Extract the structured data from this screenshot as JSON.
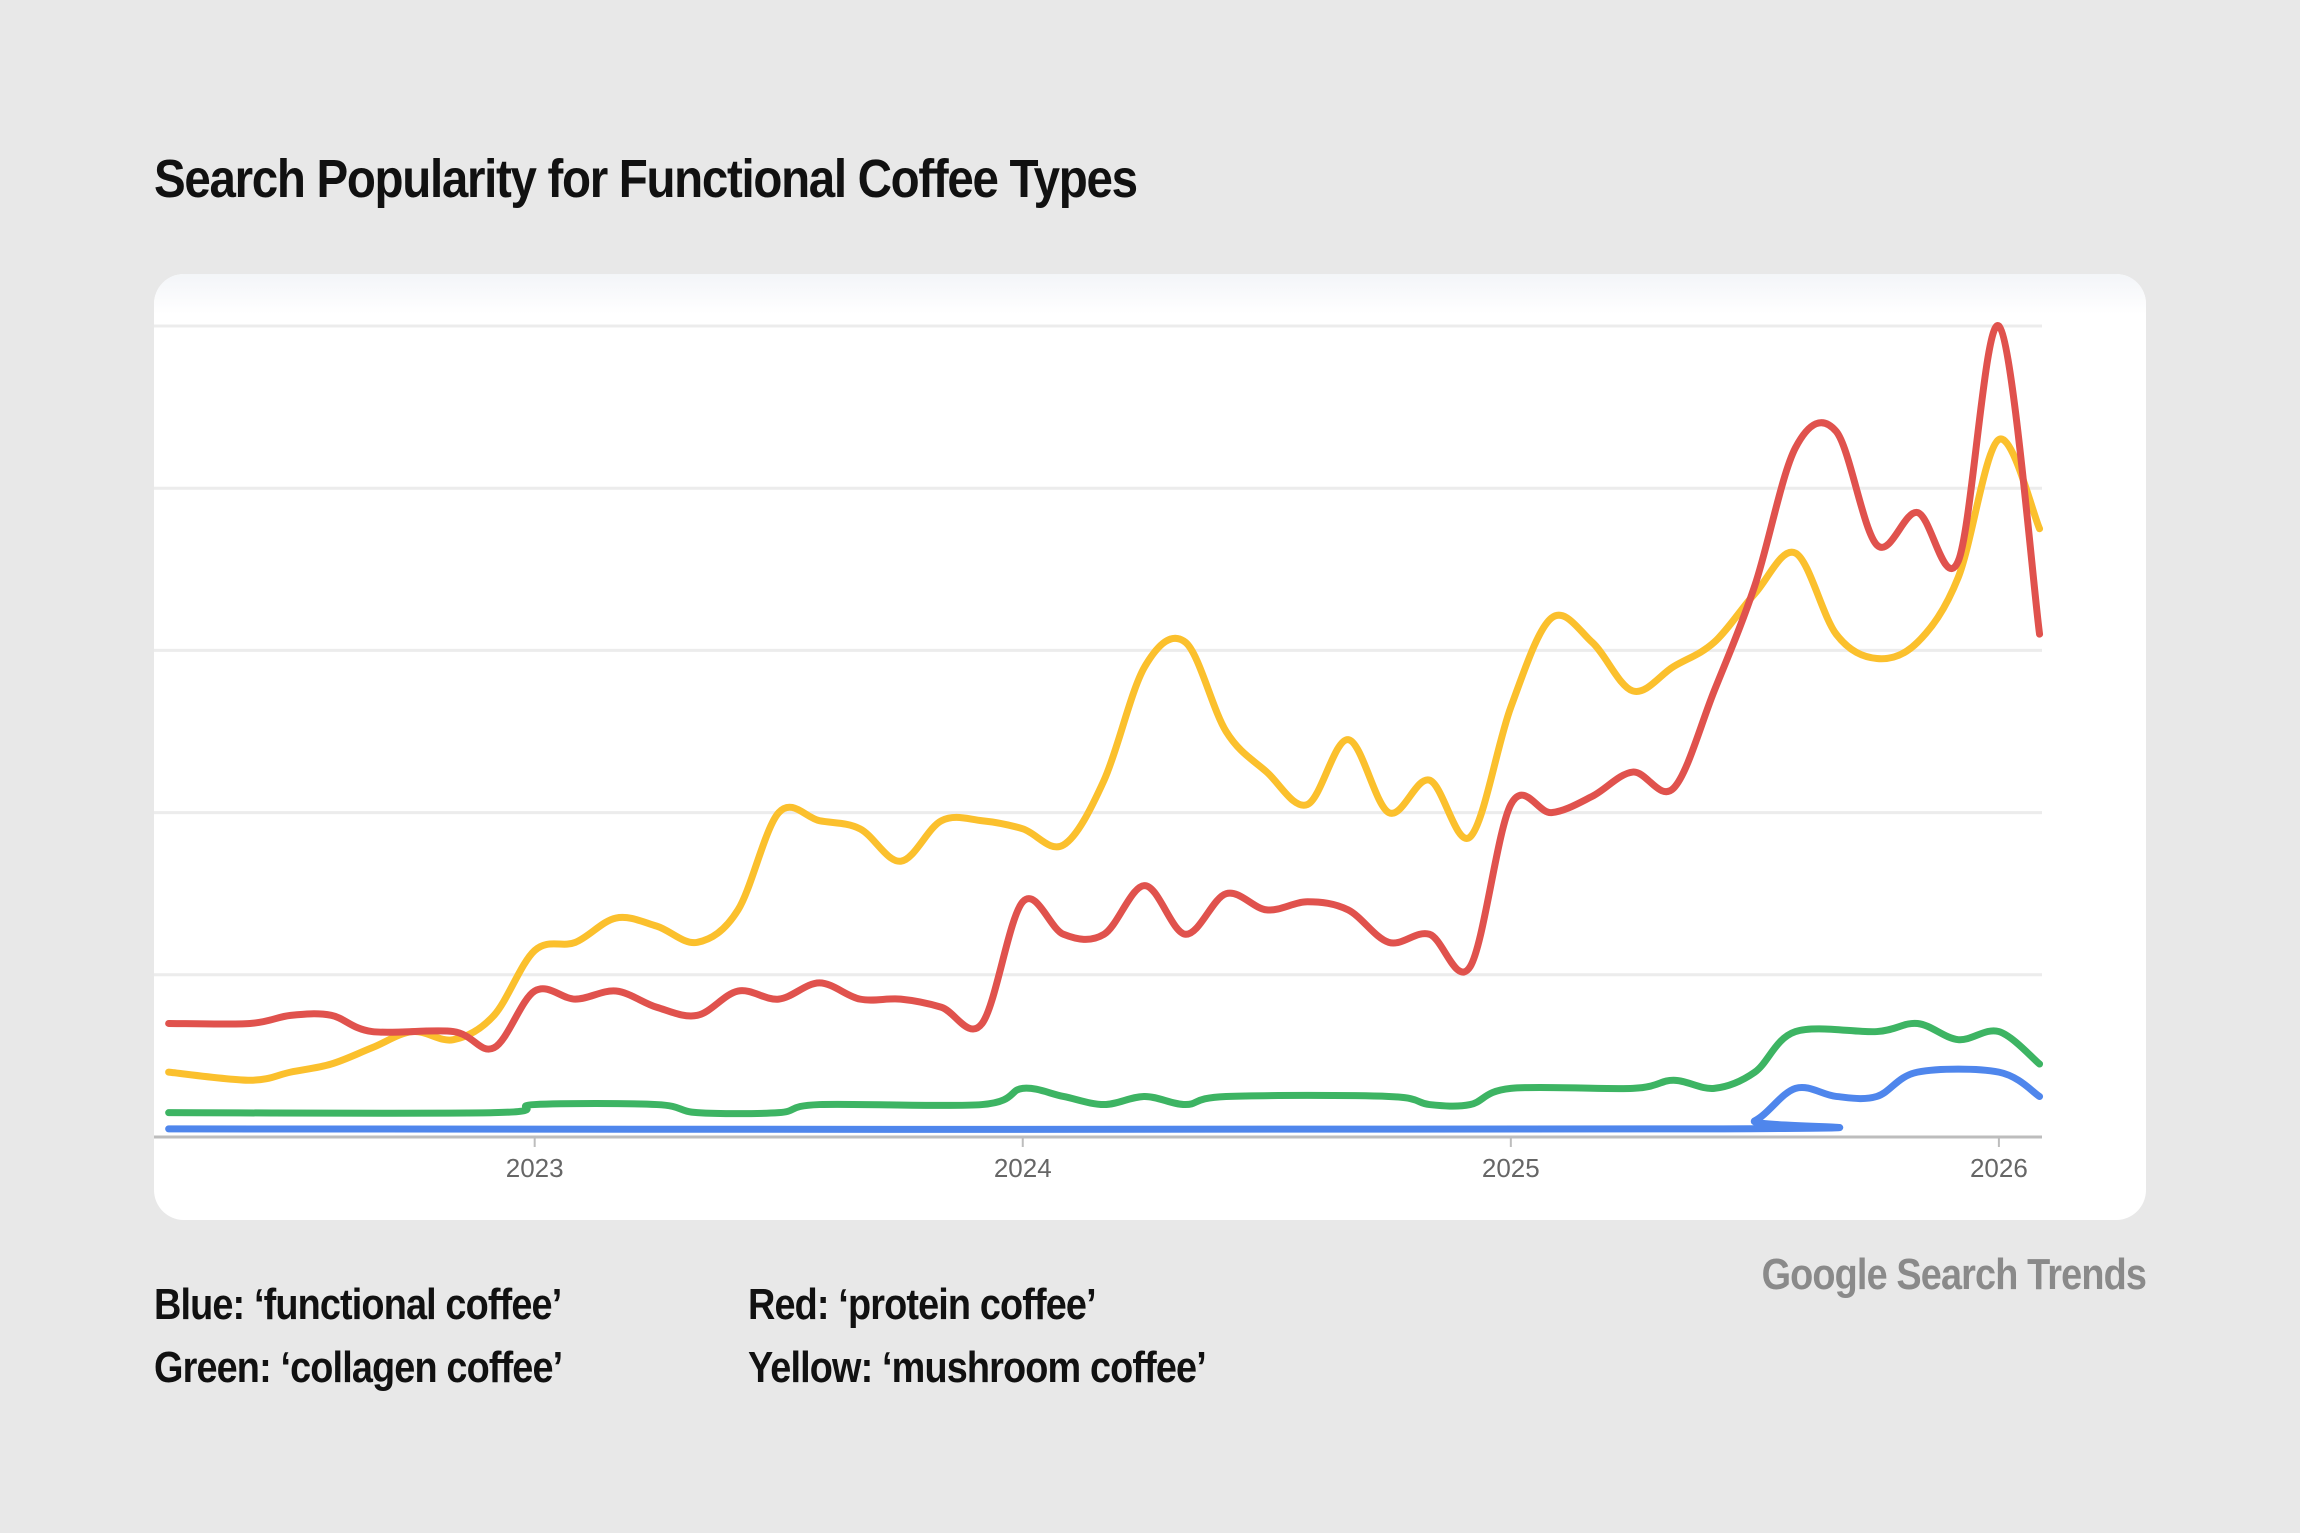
{
  "chart_data": {
    "type": "line",
    "title": "Search Popularity for Functional Coffee Types",
    "xlabel": "",
    "ylabel": "",
    "x_tick_labels": [
      "2023",
      "2024",
      "2025",
      "2026"
    ],
    "xlim": [
      "2022-04",
      "2026-02"
    ],
    "ylim": [
      0,
      100
    ],
    "y_gridlines": [
      20,
      40,
      60,
      80,
      100
    ],
    "y_tick_labels_shown": false,
    "grid": true,
    "series": [
      {
        "color": "#4f86ec",
        "points": [
          [
            "2022-04",
            1
          ],
          [
            "2025-06",
            1
          ],
          [
            "2025-07",
            2
          ],
          [
            "2025-08",
            6
          ],
          [
            "2025-09",
            5
          ],
          [
            "2025-10",
            5
          ],
          [
            "2025-11",
            8
          ],
          [
            "2026-01",
            8
          ],
          [
            "2026-02",
            5
          ]
        ]
      },
      {
        "color": "#3db463",
        "points": [
          [
            "2022-04",
            3
          ],
          [
            "2022-12",
            3
          ],
          [
            "2023-01",
            4
          ],
          [
            "2023-04",
            4
          ],
          [
            "2023-05",
            3
          ],
          [
            "2023-07",
            3
          ],
          [
            "2023-08",
            4
          ],
          [
            "2023-12",
            4
          ],
          [
            "2024-01",
            6
          ],
          [
            "2024-02",
            5
          ],
          [
            "2024-03",
            4
          ],
          [
            "2024-04",
            5
          ],
          [
            "2024-05",
            4
          ],
          [
            "2024-06",
            5
          ],
          [
            "2024-10",
            5
          ],
          [
            "2024-11",
            4
          ],
          [
            "2024-12",
            4
          ],
          [
            "2025-01",
            6
          ],
          [
            "2025-04",
            6
          ],
          [
            "2025-05",
            7
          ],
          [
            "2025-06",
            6
          ],
          [
            "2025-07",
            8
          ],
          [
            "2025-08",
            13
          ],
          [
            "2025-10",
            13
          ],
          [
            "2025-11",
            14
          ],
          [
            "2025-12",
            12
          ],
          [
            "2026-01",
            13
          ],
          [
            "2026-02",
            9
          ]
        ]
      },
      {
        "color": "#fbc02d",
        "points": [
          [
            "2022-04",
            8
          ],
          [
            "2022-06",
            7
          ],
          [
            "2022-07",
            8
          ],
          [
            "2022-08",
            9
          ],
          [
            "2022-09",
            11
          ],
          [
            "2022-10",
            13
          ],
          [
            "2022-11",
            12
          ],
          [
            "2022-12",
            15
          ],
          [
            "2023-01",
            23
          ],
          [
            "2023-02",
            24
          ],
          [
            "2023-03",
            27
          ],
          [
            "2023-04",
            26
          ],
          [
            "2023-05",
            24
          ],
          [
            "2023-06",
            28
          ],
          [
            "2023-07",
            40
          ],
          [
            "2023-08",
            39
          ],
          [
            "2023-09",
            38
          ],
          [
            "2023-10",
            34
          ],
          [
            "2023-11",
            39
          ],
          [
            "2023-12",
            39
          ],
          [
            "2024-01",
            38
          ],
          [
            "2024-02",
            36
          ],
          [
            "2024-03",
            44
          ],
          [
            "2024-04",
            58
          ],
          [
            "2024-05",
            61
          ],
          [
            "2024-06",
            50
          ],
          [
            "2024-07",
            45
          ],
          [
            "2024-08",
            41
          ],
          [
            "2024-09",
            49
          ],
          [
            "2024-10",
            40
          ],
          [
            "2024-11",
            44
          ],
          [
            "2024-12",
            37
          ],
          [
            "2025-01",
            53
          ],
          [
            "2025-02",
            64
          ],
          [
            "2025-03",
            61
          ],
          [
            "2025-04",
            55
          ],
          [
            "2025-05",
            58
          ],
          [
            "2025-06",
            61
          ],
          [
            "2025-07",
            67
          ],
          [
            "2025-08",
            72
          ],
          [
            "2025-09",
            62
          ],
          [
            "2025-10",
            59
          ],
          [
            "2025-11",
            61
          ],
          [
            "2025-12",
            69
          ],
          [
            "2026-01",
            86
          ],
          [
            "2026-02",
            75
          ]
        ]
      },
      {
        "color": "#e0524d",
        "points": [
          [
            "2022-04",
            14
          ],
          [
            "2022-06",
            14
          ],
          [
            "2022-07",
            15
          ],
          [
            "2022-08",
            15
          ],
          [
            "2022-09",
            13
          ],
          [
            "2022-11",
            13
          ],
          [
            "2022-12",
            11
          ],
          [
            "2023-01",
            18
          ],
          [
            "2023-02",
            17
          ],
          [
            "2023-03",
            18
          ],
          [
            "2023-04",
            16
          ],
          [
            "2023-05",
            15
          ],
          [
            "2023-06",
            18
          ],
          [
            "2023-07",
            17
          ],
          [
            "2023-08",
            19
          ],
          [
            "2023-09",
            17
          ],
          [
            "2023-10",
            17
          ],
          [
            "2023-11",
            16
          ],
          [
            "2023-12",
            14
          ],
          [
            "2024-01",
            29
          ],
          [
            "2024-02",
            25
          ],
          [
            "2024-03",
            25
          ],
          [
            "2024-04",
            31
          ],
          [
            "2024-05",
            25
          ],
          [
            "2024-06",
            30
          ],
          [
            "2024-07",
            28
          ],
          [
            "2024-08",
            29
          ],
          [
            "2024-09",
            28
          ],
          [
            "2024-10",
            24
          ],
          [
            "2024-11",
            25
          ],
          [
            "2024-12",
            21
          ],
          [
            "2025-01",
            41
          ],
          [
            "2025-02",
            40
          ],
          [
            "2025-03",
            42
          ],
          [
            "2025-04",
            45
          ],
          [
            "2025-05",
            43
          ],
          [
            "2025-06",
            55
          ],
          [
            "2025-07",
            68
          ],
          [
            "2025-08",
            85
          ],
          [
            "2025-09",
            87
          ],
          [
            "2025-10",
            73
          ],
          [
            "2025-11",
            77
          ],
          [
            "2025-12",
            71
          ],
          [
            "2026-01",
            100
          ],
          [
            "2026-02",
            62
          ]
        ]
      }
    ],
    "legend": [
      "Blue: ‘functional coffee’",
      "Red: ‘protein coffee’",
      "Green: ‘collagen coffee’",
      "Yellow: ‘mushroom coffee’"
    ],
    "source": "Google Search Trends"
  }
}
